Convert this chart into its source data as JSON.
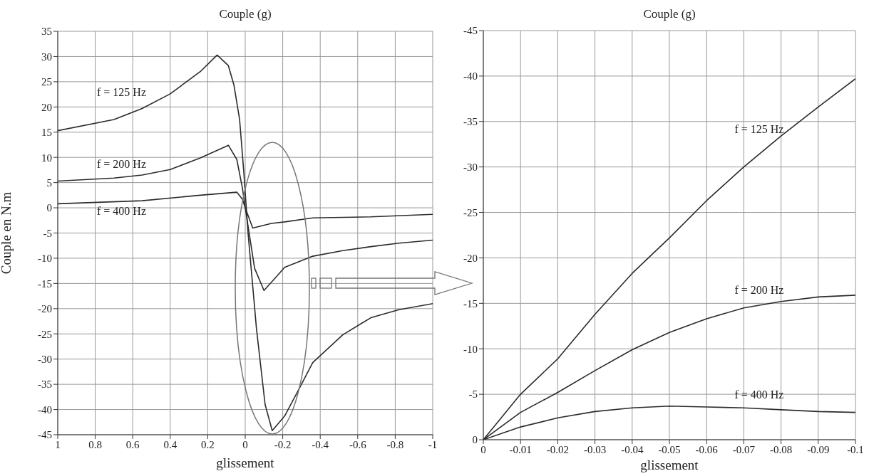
{
  "chart_data": [
    {
      "type": "line",
      "title": "Couple (g)",
      "xlabel": "glissement",
      "ylabel": "Couple en N.m",
      "xlim": [
        1,
        -1
      ],
      "ylim": [
        -45,
        35
      ],
      "xticks": [
        1,
        0.8,
        0.6,
        0.4,
        0.2,
        0,
        -0.2,
        -0.4,
        -0.6,
        -0.8,
        -1
      ],
      "yticks": [
        -45,
        -40,
        -35,
        -30,
        -25,
        -20,
        -15,
        -10,
        -5,
        0,
        5,
        10,
        15,
        20,
        25,
        30,
        35
      ],
      "grid": true,
      "series": [
        {
          "name": "f = 125 Hz",
          "color": "#2b2b2b",
          "x": [
            1,
            0.7,
            0.55,
            0.4,
            0.24,
            0.15,
            0.09,
            0.06,
            0.03,
            0.008,
            0,
            -0.015,
            -0.06,
            -0.106,
            -0.144,
            -0.21,
            -0.29,
            -0.36,
            -0.52,
            -0.67,
            -0.82,
            -1
          ],
          "values": [
            15.3,
            17.5,
            19.7,
            22.6,
            27,
            30.3,
            28.2,
            24.3,
            17.5,
            7.3,
            3,
            -5,
            -24,
            -39,
            -44.2,
            -41.3,
            -35.7,
            -30.7,
            -25.2,
            -21.8,
            -20.2,
            -19
          ]
        },
        {
          "name": "f = 200 Hz",
          "color": "#2b2b2b",
          "x": [
            1,
            0.7,
            0.55,
            0.4,
            0.24,
            0.09,
            0.045,
            0.015,
            0,
            -0.05,
            -0.1,
            -0.17,
            -0.21,
            -0.36,
            -0.52,
            -0.67,
            -0.82,
            -1
          ],
          "values": [
            5.3,
            5.9,
            6.5,
            7.6,
            9.9,
            12.4,
            9.6,
            3.9,
            0,
            -12,
            -16.4,
            -13.5,
            -11.8,
            -9.6,
            -8.5,
            -7.7,
            -7,
            -6.4
          ]
        },
        {
          "name": "f = 400 Hz",
          "color": "#2b2b2b",
          "x": [
            1,
            0.55,
            0.24,
            0.045,
            0.015,
            0,
            -0.04,
            -0.14,
            -0.21,
            -0.36,
            -0.67,
            -1
          ],
          "values": [
            0.8,
            1.4,
            2.5,
            3.1,
            1.7,
            0,
            -4,
            -3.1,
            -2.8,
            -2,
            -1.8,
            -1.3
          ]
        }
      ]
    },
    {
      "type": "line",
      "title": "Couple (g)",
      "xlabel": "glissement",
      "xlim": [
        0,
        -0.1
      ],
      "ylim": [
        0,
        -45
      ],
      "xticks": [
        0,
        -0.01,
        -0.02,
        -0.03,
        -0.04,
        -0.05,
        -0.06,
        -0.07,
        -0.08,
        -0.09,
        -0.1
      ],
      "yticks": [
        0,
        -5,
        -10,
        -15,
        -20,
        -25,
        -30,
        -35,
        -40,
        -45
      ],
      "grid": true,
      "series": [
        {
          "name": "f = 125 Hz",
          "color": "#2b2b2b",
          "x": [
            0,
            -0.01,
            -0.02,
            -0.03,
            -0.04,
            -0.05,
            -0.06,
            -0.07,
            -0.08,
            -0.09,
            -0.1
          ],
          "values": [
            0,
            -5,
            -8.9,
            -13.8,
            -18.3,
            -22.2,
            -26.3,
            -30,
            -33.4,
            -36.6,
            -39.7
          ]
        },
        {
          "name": "f = 200 Hz",
          "color": "#2b2b2b",
          "x": [
            0,
            -0.01,
            -0.02,
            -0.03,
            -0.04,
            -0.05,
            -0.06,
            -0.07,
            -0.08,
            -0.09,
            -0.1
          ],
          "values": [
            0,
            -3,
            -5.2,
            -7.6,
            -9.9,
            -11.8,
            -13.3,
            -14.5,
            -15.2,
            -15.7,
            -15.9
          ]
        },
        {
          "name": "f = 400 Hz",
          "color": "#2b2b2b",
          "x": [
            0,
            -0.01,
            -0.02,
            -0.03,
            -0.04,
            -0.05,
            -0.06,
            -0.07,
            -0.08,
            -0.09,
            -0.1
          ],
          "values": [
            0,
            -1.4,
            -2.4,
            -3.1,
            -3.5,
            -3.7,
            -3.6,
            -3.5,
            -3.3,
            -3.1,
            -3.0
          ]
        }
      ]
    }
  ]
}
